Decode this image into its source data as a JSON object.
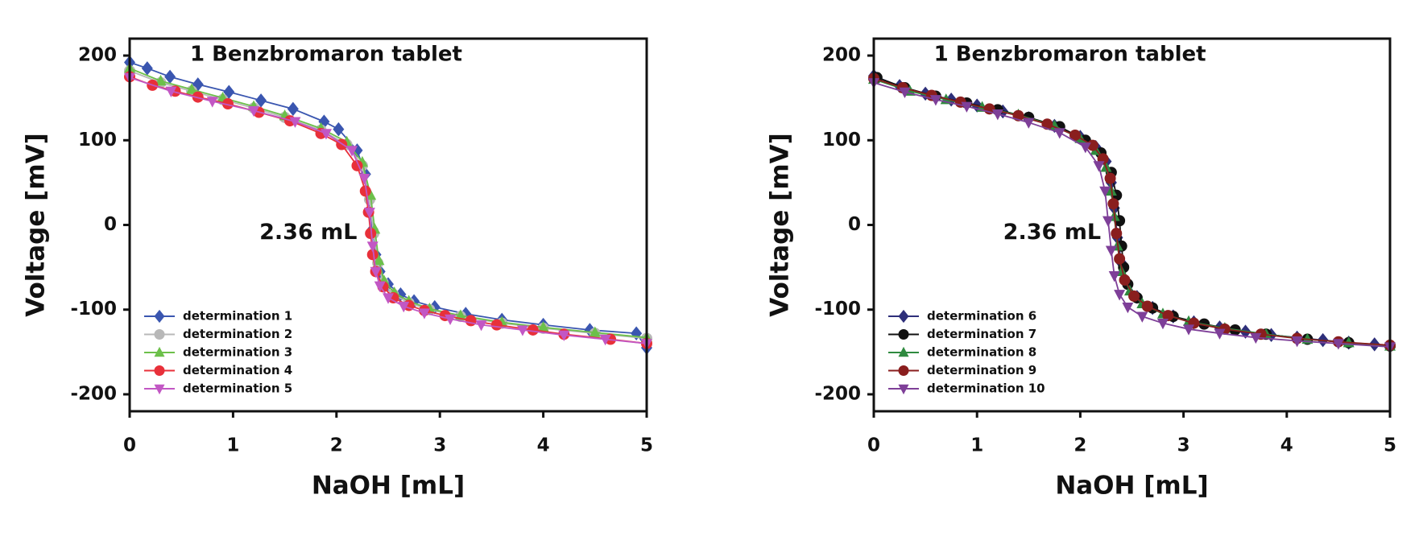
{
  "chart_data": [
    {
      "type": "line",
      "title": "1 Benzbromaron tablet",
      "xlabel": "NaOH [mL]",
      "ylabel": "Voltage [mV]",
      "annotation": "2.36 mL",
      "xlim": [
        0,
        5
      ],
      "ylim": [
        -220,
        220
      ],
      "xticks": [
        0,
        1,
        2,
        3,
        4,
        5
      ],
      "yticks": [
        -200,
        -100,
        0,
        100,
        200
      ],
      "grid": false,
      "legend": "lower left",
      "series": [
        {
          "name": "determination 1",
          "color": "#3a56b0",
          "marker": "diamond",
          "x": [
            0,
            0.17,
            0.39,
            0.66,
            0.96,
            1.27,
            1.58,
            1.88,
            2.02,
            2.2,
            2.28,
            2.32,
            2.35,
            2.38,
            2.42,
            2.5,
            2.62,
            2.75,
            2.95,
            3.25,
            3.6,
            4.0,
            4.45,
            4.9,
            5.0
          ],
          "values": [
            192,
            185,
            175,
            166,
            157,
            147,
            137,
            122,
            113,
            88,
            60,
            30,
            -5,
            -35,
            -55,
            -70,
            -82,
            -90,
            -97,
            -105,
            -112,
            -118,
            -124,
            -128,
            -145
          ]
        },
        {
          "name": "determination 2",
          "color": "#b8b8b8",
          "marker": "circle",
          "x": [
            0,
            0.3,
            0.6,
            0.9,
            1.2,
            1.5,
            1.85,
            2.1,
            2.25,
            2.32,
            2.36,
            2.4,
            2.45,
            2.55,
            2.7,
            2.9,
            3.2,
            3.6,
            4.0,
            4.5,
            5.0
          ],
          "values": [
            182,
            168,
            158,
            148,
            138,
            127,
            112,
            95,
            70,
            30,
            -10,
            -45,
            -68,
            -82,
            -92,
            -100,
            -108,
            -116,
            -122,
            -128,
            -134
          ]
        },
        {
          "name": "determination 3",
          "color": "#6cc04a",
          "marker": "triangle",
          "x": [
            0,
            0.3,
            0.6,
            0.9,
            1.2,
            1.5,
            1.85,
            2.1,
            2.25,
            2.33,
            2.37,
            2.41,
            2.46,
            2.56,
            2.7,
            2.9,
            3.2,
            3.6,
            4.0,
            4.5,
            5.0
          ],
          "values": [
            185,
            170,
            160,
            150,
            140,
            129,
            114,
            98,
            74,
            35,
            -5,
            -42,
            -66,
            -80,
            -90,
            -99,
            -107,
            -115,
            -121,
            -127,
            -133
          ]
        },
        {
          "name": "determination 4",
          "color": "#e8303a",
          "marker": "circle",
          "x": [
            0,
            0.22,
            0.44,
            0.66,
            0.95,
            1.25,
            1.55,
            1.85,
            2.05,
            2.2,
            2.28,
            2.31,
            2.33,
            2.35,
            2.38,
            2.45,
            2.55,
            2.7,
            2.85,
            3.05,
            3.3,
            3.55,
            3.9,
            4.2,
            4.65,
            5.0
          ],
          "values": [
            175,
            165,
            158,
            151,
            143,
            133,
            123,
            108,
            95,
            70,
            40,
            15,
            -10,
            -35,
            -55,
            -73,
            -86,
            -95,
            -101,
            -107,
            -113,
            -118,
            -124,
            -129,
            -135,
            -140
          ]
        },
        {
          "name": "determination 5",
          "color": "#c257c4",
          "marker": "triangle-down",
          "x": [
            0,
            0.4,
            0.8,
            1.2,
            1.6,
            1.9,
            2.15,
            2.27,
            2.32,
            2.35,
            2.38,
            2.42,
            2.5,
            2.65,
            2.85,
            3.1,
            3.4,
            3.8,
            4.2,
            4.6,
            5.0
          ],
          "values": [
            174,
            158,
            146,
            135,
            122,
            108,
            88,
            55,
            15,
            -25,
            -55,
            -72,
            -86,
            -96,
            -104,
            -111,
            -118,
            -124,
            -130,
            -135,
            -140
          ]
        }
      ]
    },
    {
      "type": "line",
      "title": "1 Benzbromaron tablet",
      "xlabel": "NaOH [mL]",
      "ylabel": "Voltage [mV]",
      "annotation": "2.36 mL",
      "xlim": [
        0,
        5
      ],
      "ylim": [
        -220,
        220
      ],
      "xticks": [
        0,
        1,
        2,
        3,
        4,
        5
      ],
      "yticks": [
        -200,
        -100,
        0,
        100,
        200
      ],
      "grid": false,
      "legend": "lower left",
      "series": [
        {
          "name": "determination 6",
          "color": "#2e2f7a",
          "marker": "diamond",
          "x": [
            0,
            0.25,
            0.5,
            0.75,
            1.0,
            1.25,
            1.5,
            1.75,
            2.0,
            2.15,
            2.25,
            2.3,
            2.33,
            2.36,
            2.4,
            2.45,
            2.55,
            2.7,
            2.9,
            3.1,
            3.35,
            3.6,
            3.85,
            4.1,
            4.35,
            4.6,
            4.85,
            5.0
          ],
          "values": [
            176,
            164,
            155,
            148,
            141,
            134,
            126,
            117,
            104,
            92,
            75,
            50,
            20,
            -15,
            -45,
            -68,
            -85,
            -98,
            -108,
            -115,
            -121,
            -126,
            -130,
            -133,
            -136,
            -139,
            -141,
            -143
          ]
        },
        {
          "name": "determination 7",
          "color": "#111111",
          "marker": "circle",
          "x": [
            0.03,
            0.3,
            0.6,
            0.9,
            1.2,
            1.5,
            1.8,
            2.05,
            2.2,
            2.3,
            2.35,
            2.38,
            2.4,
            2.42,
            2.46,
            2.55,
            2.7,
            2.9,
            3.2,
            3.5,
            3.8,
            4.2,
            4.6,
            5.0
          ],
          "values": [
            174,
            162,
            152,
            144,
            136,
            127,
            116,
            100,
            85,
            62,
            35,
            5,
            -25,
            -50,
            -70,
            -86,
            -98,
            -108,
            -117,
            -124,
            -129,
            -135,
            -139,
            -143
          ]
        },
        {
          "name": "determination 8",
          "color": "#2f8a3f",
          "marker": "triangle",
          "x": [
            0,
            0.35,
            0.7,
            1.05,
            1.4,
            1.75,
            2.0,
            2.15,
            2.25,
            2.3,
            2.33,
            2.36,
            2.4,
            2.48,
            2.6,
            2.8,
            3.05,
            3.4,
            3.8,
            4.2,
            4.6,
            5.0
          ],
          "values": [
            172,
            158,
            148,
            139,
            130,
            117,
            102,
            88,
            68,
            40,
            10,
            -25,
            -55,
            -78,
            -93,
            -105,
            -114,
            -122,
            -129,
            -135,
            -139,
            -143
          ]
        },
        {
          "name": "determination 9",
          "color": "#8a1e1e",
          "marker": "circle",
          "x": [
            0,
            0.28,
            0.56,
            0.84,
            1.12,
            1.4,
            1.68,
            1.95,
            2.12,
            2.22,
            2.29,
            2.32,
            2.35,
            2.38,
            2.43,
            2.52,
            2.65,
            2.85,
            3.1,
            3.4,
            3.75,
            4.1,
            4.5,
            5.0
          ],
          "values": [
            173,
            162,
            153,
            145,
            137,
            129,
            119,
            106,
            94,
            78,
            55,
            25,
            -10,
            -40,
            -65,
            -84,
            -96,
            -107,
            -116,
            -123,
            -129,
            -134,
            -138,
            -142
          ]
        },
        {
          "name": "determination 10",
          "color": "#7e3f98",
          "marker": "triangle-down",
          "x": [
            0,
            0.3,
            0.6,
            0.9,
            1.2,
            1.5,
            1.8,
            2.05,
            2.18,
            2.24,
            2.27,
            2.3,
            2.33,
            2.38,
            2.46,
            2.6,
            2.8,
            3.05,
            3.35,
            3.7,
            4.1,
            4.5,
            5.0
          ],
          "values": [
            168,
            157,
            148,
            140,
            131,
            121,
            109,
            92,
            70,
            40,
            5,
            -30,
            -60,
            -82,
            -97,
            -108,
            -116,
            -123,
            -128,
            -133,
            -137,
            -140,
            -144
          ]
        }
      ]
    }
  ]
}
